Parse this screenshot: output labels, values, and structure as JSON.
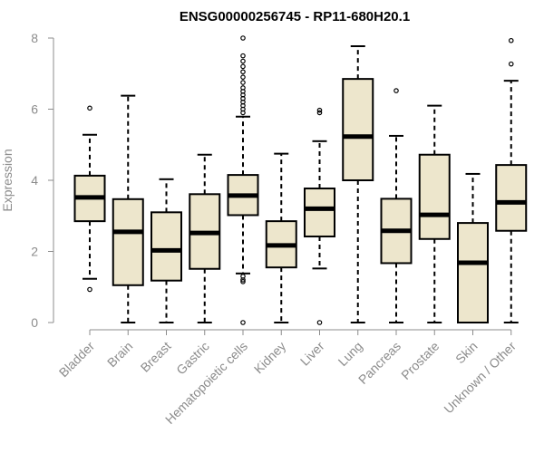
{
  "chart_data": {
    "type": "boxplot",
    "title": "ENSG00000256745 - RP11-680H20.1",
    "xlabel": "",
    "ylabel": "Expression",
    "ylim": [
      0,
      8
    ],
    "yticks": [
      0,
      2,
      4,
      6,
      8
    ],
    "box_fill": "#ede6cc",
    "box_stroke": "#000000",
    "axis_color": "#8c8c8c",
    "categories": [
      "Bladder",
      "Brain",
      "Breast",
      "Gastric",
      "Hematopoietic cells",
      "Kidney",
      "Liver",
      "Lung",
      "Pancreas",
      "Prostate",
      "Skin",
      "Unknown / Other"
    ],
    "boxes": [
      {
        "category": "Bladder",
        "q1": 2.85,
        "median": 3.52,
        "q3": 4.13,
        "whisker_low": 1.23,
        "whisker_high": 5.28,
        "outliers": [
          6.03,
          0.93
        ]
      },
      {
        "category": "Brain",
        "q1": 1.05,
        "median": 2.55,
        "q3": 3.47,
        "whisker_low": 0.0,
        "whisker_high": 6.38,
        "outliers": []
      },
      {
        "category": "Breast",
        "q1": 1.18,
        "median": 2.03,
        "q3": 3.1,
        "whisker_low": 0.0,
        "whisker_high": 4.03,
        "outliers": []
      },
      {
        "category": "Gastric",
        "q1": 1.51,
        "median": 2.52,
        "q3": 3.61,
        "whisker_low": 0.0,
        "whisker_high": 4.72,
        "outliers": []
      },
      {
        "category": "Hematopoietic cells",
        "q1": 3.02,
        "median": 3.57,
        "q3": 4.15,
        "whisker_low": 1.38,
        "whisker_high": 5.79,
        "outliers": [
          8.0,
          7.5,
          7.35,
          7.2,
          7.05,
          6.9,
          6.75,
          6.6,
          6.5,
          6.4,
          6.3,
          6.2,
          6.1,
          6.0,
          5.9,
          1.3,
          1.2,
          1.15,
          0.0
        ]
      },
      {
        "category": "Kidney",
        "q1": 1.55,
        "median": 2.17,
        "q3": 2.85,
        "whisker_low": 0.0,
        "whisker_high": 4.75,
        "outliers": []
      },
      {
        "category": "Liver",
        "q1": 2.42,
        "median": 3.2,
        "q3": 3.77,
        "whisker_low": 1.52,
        "whisker_high": 5.1,
        "outliers": [
          5.97,
          5.9,
          0.0
        ]
      },
      {
        "category": "Lung",
        "q1": 4.0,
        "median": 5.23,
        "q3": 6.85,
        "whisker_low": 0.0,
        "whisker_high": 7.77,
        "outliers": []
      },
      {
        "category": "Pancreas",
        "q1": 1.67,
        "median": 2.58,
        "q3": 3.48,
        "whisker_low": 0.0,
        "whisker_high": 5.25,
        "outliers": [
          6.52
        ]
      },
      {
        "category": "Prostate",
        "q1": 2.35,
        "median": 3.03,
        "q3": 4.72,
        "whisker_low": 0.0,
        "whisker_high": 6.1,
        "outliers": []
      },
      {
        "category": "Skin",
        "q1": 0.0,
        "median": 1.68,
        "q3": 2.8,
        "whisker_low": 0.0,
        "whisker_high": 4.18,
        "outliers": []
      },
      {
        "category": "Unknown / Other",
        "q1": 2.58,
        "median": 3.38,
        "q3": 4.43,
        "whisker_low": 0.0,
        "whisker_high": 6.8,
        "outliers": [
          7.93,
          7.27
        ]
      }
    ]
  }
}
